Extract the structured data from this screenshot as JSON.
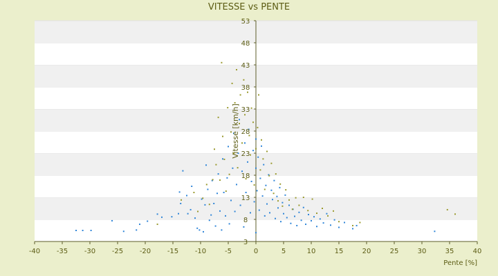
{
  "chart_data": {
    "type": "scatter",
    "title": "VITESSE vs PENTE",
    "xlabel": "Pente [%]",
    "ylabel": "Vitesse [km/h]",
    "xlim": [
      -40,
      40
    ],
    "ylim": [
      3,
      53
    ],
    "x_ticks": [
      "-40",
      "-35",
      "-30",
      "-25",
      "-20",
      "-15",
      "-10",
      "-5",
      "0",
      "5",
      "10",
      "15",
      "20",
      "25",
      "30",
      "35",
      "40"
    ],
    "y_ticks": [
      "3",
      "8",
      "13",
      "18",
      "23",
      "28",
      "33",
      "38",
      "43",
      "48",
      "53"
    ],
    "grid": "horizontal bands",
    "colors": {
      "background": "#ebefcc",
      "plot_band_light": "#ffffff",
      "plot_band_dark": "#f0f0f0",
      "axis": "#5c5c2a",
      "text": "#5c5c14",
      "series_blue": "#2f85d8",
      "series_olive": "#9a9a2e"
    },
    "series": [
      {
        "color": "#2f85d8",
        "points": [
          [
            -32.5,
            5.5
          ],
          [
            -31.3,
            5.5
          ],
          [
            -29.8,
            5.5
          ],
          [
            -26.0,
            7.7
          ],
          [
            -23.9,
            5.3
          ],
          [
            -21.6,
            5.6
          ],
          [
            -21.0,
            6.9
          ],
          [
            -19.6,
            7.6
          ],
          [
            -17.8,
            9.2
          ],
          [
            -17.0,
            8.5
          ],
          [
            -15.2,
            8.6
          ],
          [
            -14.0,
            9.3
          ],
          [
            -13.8,
            14.2
          ],
          [
            -13.6,
            11.6
          ],
          [
            -13.2,
            19.0
          ],
          [
            -12.5,
            13.4
          ],
          [
            -12.3,
            9.3
          ],
          [
            -11.8,
            10.2
          ],
          [
            -11.6,
            15.5
          ],
          [
            -11.0,
            8.3
          ],
          [
            -10.6,
            6.0
          ],
          [
            -10.2,
            5.6
          ],
          [
            -9.8,
            12.6
          ],
          [
            -9.5,
            5.2
          ],
          [
            -9.2,
            11.3
          ],
          [
            -9.0,
            20.3
          ],
          [
            -8.7,
            14.8
          ],
          [
            -8.4,
            7.8
          ],
          [
            -8.1,
            9.0
          ],
          [
            -7.9,
            16.8
          ],
          [
            -7.6,
            11.6
          ],
          [
            -7.3,
            6.5
          ],
          [
            -7.0,
            13.9
          ],
          [
            -6.8,
            18.3
          ],
          [
            -6.5,
            9.9
          ],
          [
            -6.2,
            5.6
          ],
          [
            -6.0,
            21.7
          ],
          [
            -5.8,
            14.1
          ],
          [
            -5.5,
            8.8
          ],
          [
            -5.2,
            17.4
          ],
          [
            -5.0,
            24.5
          ],
          [
            -4.8,
            7.0
          ],
          [
            -4.5,
            12.3
          ],
          [
            -4.2,
            19.6
          ],
          [
            -4.0,
            27.5
          ],
          [
            -3.8,
            9.8
          ],
          [
            -3.5,
            15.9
          ],
          [
            -3.2,
            23.0
          ],
          [
            -3.0,
            30.6
          ],
          [
            -2.8,
            11.2
          ],
          [
            -2.5,
            18.9
          ],
          [
            -2.2,
            6.3
          ],
          [
            -2.0,
            25.3
          ],
          [
            -1.8,
            14.1
          ],
          [
            -1.5,
            21.0
          ],
          [
            -1.3,
            28.4
          ],
          [
            -1.0,
            9.5
          ],
          [
            -0.8,
            16.6
          ],
          [
            -0.5,
            23.6
          ],
          [
            -0.3,
            12.0
          ],
          [
            0.0,
            19.6
          ],
          [
            0.0,
            26.2
          ],
          [
            0.0,
            5.0
          ],
          [
            0.2,
            14.5
          ],
          [
            0.4,
            22.1
          ],
          [
            0.6,
            10.1
          ],
          [
            0.8,
            17.3
          ],
          [
            1.0,
            24.6
          ],
          [
            1.2,
            13.3
          ],
          [
            1.4,
            20.4
          ],
          [
            1.6,
            8.8
          ],
          [
            1.8,
            15.7
          ],
          [
            2.0,
            11.5
          ],
          [
            2.3,
            18.1
          ],
          [
            2.5,
            9.5
          ],
          [
            2.8,
            14.6
          ],
          [
            3.0,
            12.5
          ],
          [
            3.3,
            16.8
          ],
          [
            3.5,
            8.2
          ],
          [
            3.8,
            13.2
          ],
          [
            4.0,
            10.6
          ],
          [
            4.3,
            15.2
          ],
          [
            4.5,
            7.5
          ],
          [
            4.8,
            11.8
          ],
          [
            5.0,
            9.3
          ],
          [
            5.3,
            13.5
          ],
          [
            5.6,
            8.4
          ],
          [
            6.0,
            11.2
          ],
          [
            6.3,
            7.1
          ],
          [
            6.7,
            10.3
          ],
          [
            7.0,
            8.7
          ],
          [
            7.4,
            6.6
          ],
          [
            7.8,
            9.6
          ],
          [
            8.2,
            7.8
          ],
          [
            8.6,
            10.7
          ],
          [
            9.0,
            6.9
          ],
          [
            9.5,
            9.1
          ],
          [
            10.0,
            7.7
          ],
          [
            10.5,
            8.6
          ],
          [
            11.0,
            6.4
          ],
          [
            11.6,
            8.1
          ],
          [
            12.2,
            7.2
          ],
          [
            12.8,
            9.3
          ],
          [
            13.5,
            6.7
          ],
          [
            14.2,
            7.9
          ],
          [
            15.0,
            6.2
          ],
          [
            16.0,
            7.3
          ],
          [
            17.5,
            5.9
          ],
          [
            18.2,
            6.6
          ],
          [
            32.3,
            5.3
          ]
        ]
      },
      {
        "color": "#9a9a2e",
        "points": [
          [
            -17.8,
            6.9
          ],
          [
            -13.5,
            12.4
          ],
          [
            -11.2,
            14.1
          ],
          [
            -10.5,
            9.8
          ],
          [
            -9.6,
            12.8
          ],
          [
            -8.9,
            15.9
          ],
          [
            -8.4,
            11.4
          ],
          [
            -7.8,
            17.0
          ],
          [
            -7.5,
            23.9
          ],
          [
            -7.2,
            20.4
          ],
          [
            -6.8,
            31.1
          ],
          [
            -6.5,
            16.9
          ],
          [
            -6.2,
            43.5
          ],
          [
            -6.0,
            26.8
          ],
          [
            -5.7,
            21.6
          ],
          [
            -5.4,
            14.4
          ],
          [
            -5.1,
            33.3
          ],
          [
            -4.8,
            18.2
          ],
          [
            -4.5,
            27.8
          ],
          [
            -4.3,
            38.8
          ],
          [
            -4.0,
            23.0
          ],
          [
            -3.8,
            34.4
          ],
          [
            -3.5,
            41.9
          ],
          [
            -3.3,
            19.7
          ],
          [
            -3.0,
            29.7
          ],
          [
            -2.8,
            36.2
          ],
          [
            -2.5,
            25.3
          ],
          [
            -2.2,
            39.6
          ],
          [
            -2.0,
            31.7
          ],
          [
            -1.8,
            17.2
          ],
          [
            -1.5,
            36.8
          ],
          [
            -1.2,
            27.0
          ],
          [
            -1.0,
            22.6
          ],
          [
            -0.8,
            33.2
          ],
          [
            -0.5,
            30.0
          ],
          [
            -0.3,
            15.8
          ],
          [
            0.0,
            24.0
          ],
          [
            0.3,
            28.8
          ],
          [
            0.5,
            36.2
          ],
          [
            0.8,
            19.2
          ],
          [
            1.0,
            26.0
          ],
          [
            1.3,
            21.7
          ],
          [
            1.6,
            14.8
          ],
          [
            2.0,
            23.4
          ],
          [
            2.4,
            17.9
          ],
          [
            2.8,
            20.7
          ],
          [
            3.2,
            13.9
          ],
          [
            3.6,
            18.3
          ],
          [
            4.0,
            12.2
          ],
          [
            4.4,
            16.0
          ],
          [
            4.8,
            11.0
          ],
          [
            5.4,
            14.7
          ],
          [
            6.0,
            12.4
          ],
          [
            6.6,
            10.3
          ],
          [
            7.2,
            12.9
          ],
          [
            7.8,
            11.2
          ],
          [
            8.6,
            13.0
          ],
          [
            9.4,
            10.0
          ],
          [
            10.2,
            12.6
          ],
          [
            11.0,
            9.4
          ],
          [
            12.0,
            10.5
          ],
          [
            13.0,
            8.8
          ],
          [
            14.0,
            9.9
          ],
          [
            15.0,
            7.5
          ],
          [
            17.5,
            6.6
          ],
          [
            18.8,
            7.3
          ],
          [
            34.6,
            10.2
          ],
          [
            36.0,
            9.2
          ]
        ]
      }
    ]
  }
}
